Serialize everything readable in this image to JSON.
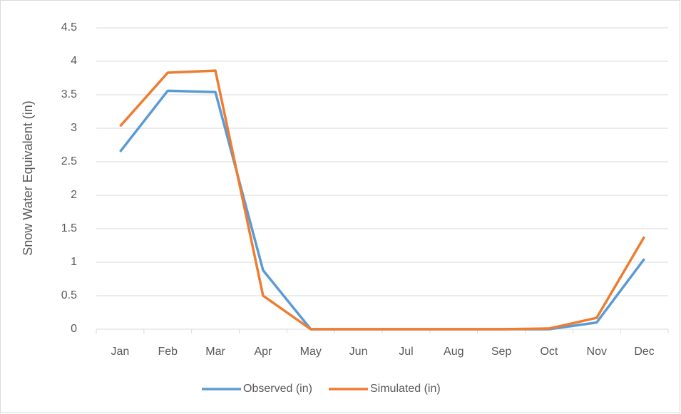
{
  "chart_data": {
    "type": "line",
    "y_label": "Snow Water Equivalent (in)",
    "categories": [
      "Jan",
      "Feb",
      "Mar",
      "Apr",
      "May",
      "Jun",
      "Jul",
      "Aug",
      "Sep",
      "Oct",
      "Nov",
      "Dec"
    ],
    "series": [
      {
        "name": "Observed (in)",
        "color": "#5b9bd5",
        "values": [
          2.65,
          3.56,
          3.54,
          0.88,
          0,
          0,
          0,
          0,
          0,
          0,
          0.1,
          1.05
        ]
      },
      {
        "name": "Simulated (in)",
        "color": "#ed7d31",
        "values": [
          3.03,
          3.83,
          3.86,
          0.5,
          0,
          0,
          0,
          0,
          0,
          0.01,
          0.17,
          1.38
        ]
      }
    ],
    "ylim": [
      0,
      4.5
    ],
    "yticks": [
      0,
      0.5,
      1,
      1.5,
      2,
      2.5,
      3,
      3.5,
      4,
      4.5
    ],
    "grid": true,
    "legend": "bottom"
  }
}
